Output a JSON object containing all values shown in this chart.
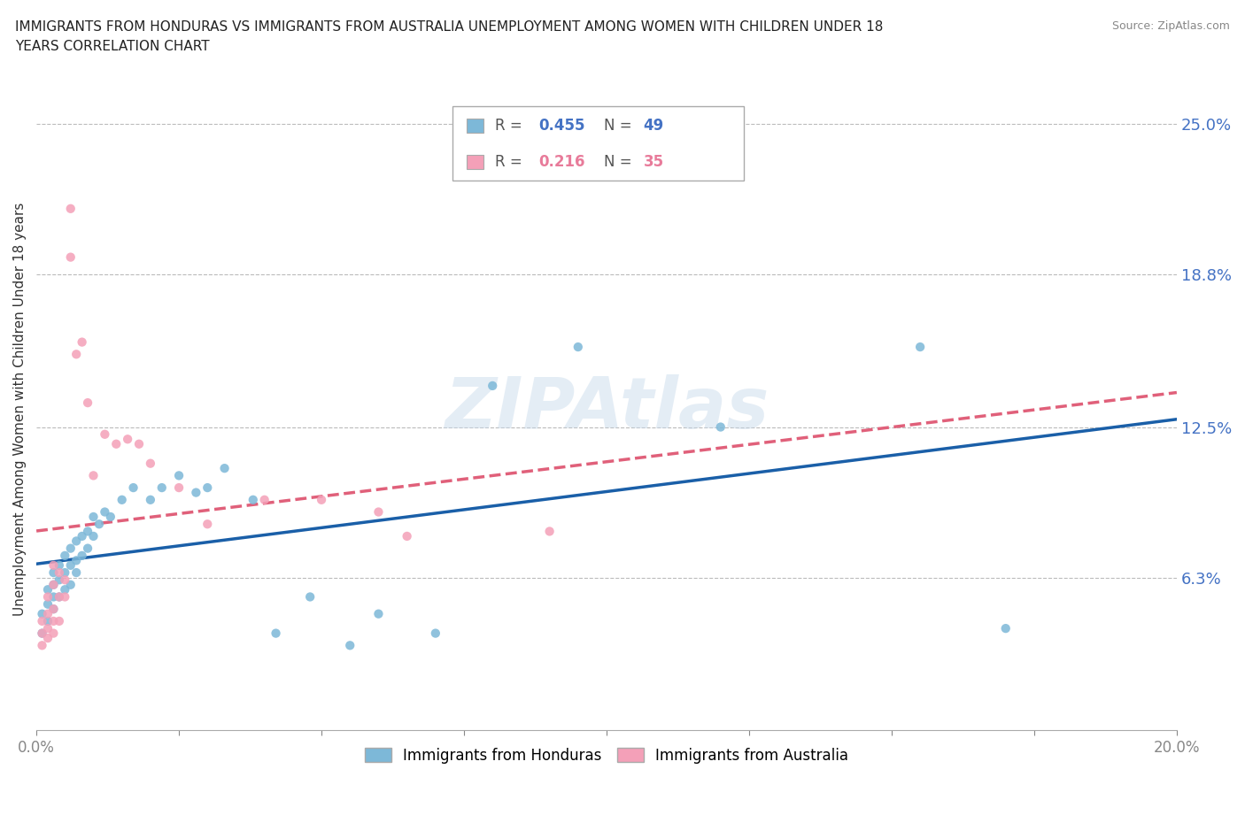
{
  "title": "IMMIGRANTS FROM HONDURAS VS IMMIGRANTS FROM AUSTRALIA UNEMPLOYMENT AMONG WOMEN WITH CHILDREN UNDER 18\nYEARS CORRELATION CHART",
  "source": "Source: ZipAtlas.com",
  "ylabel": "Unemployment Among Women with Children Under 18 years",
  "xlim": [
    0.0,
    0.2
  ],
  "ylim": [
    0.0,
    0.265
  ],
  "yticks": [
    0.063,
    0.125,
    0.188,
    0.25
  ],
  "ytick_labels": [
    "6.3%",
    "12.5%",
    "18.8%",
    "25.0%"
  ],
  "xticks": [
    0.0,
    0.025,
    0.05,
    0.075,
    0.1,
    0.125,
    0.15,
    0.175,
    0.2
  ],
  "xtick_labels": [
    "0.0%",
    "",
    "",
    "",
    "",
    "",
    "",
    "",
    "20.0%"
  ],
  "color_honduras": "#7db8d8",
  "color_australia": "#f4a0b8",
  "color_trend_honduras": "#1a5fa8",
  "color_trend_australia": "#e0607a",
  "watermark": "ZIPAtlas",
  "legend_label1": "Immigrants from Honduras",
  "legend_label2": "Immigrants from Australia",
  "honduras_x": [
    0.001,
    0.001,
    0.002,
    0.002,
    0.002,
    0.003,
    0.003,
    0.003,
    0.003,
    0.004,
    0.004,
    0.004,
    0.005,
    0.005,
    0.005,
    0.006,
    0.006,
    0.006,
    0.007,
    0.007,
    0.007,
    0.008,
    0.008,
    0.009,
    0.009,
    0.01,
    0.01,
    0.011,
    0.012,
    0.013,
    0.015,
    0.017,
    0.02,
    0.022,
    0.025,
    0.028,
    0.03,
    0.033,
    0.038,
    0.042,
    0.048,
    0.055,
    0.06,
    0.07,
    0.08,
    0.095,
    0.12,
    0.155,
    0.17
  ],
  "honduras_y": [
    0.04,
    0.048,
    0.045,
    0.052,
    0.058,
    0.05,
    0.055,
    0.06,
    0.065,
    0.055,
    0.062,
    0.068,
    0.058,
    0.065,
    0.072,
    0.06,
    0.068,
    0.075,
    0.065,
    0.07,
    0.078,
    0.072,
    0.08,
    0.075,
    0.082,
    0.08,
    0.088,
    0.085,
    0.09,
    0.088,
    0.095,
    0.1,
    0.095,
    0.1,
    0.105,
    0.098,
    0.1,
    0.108,
    0.095,
    0.04,
    0.055,
    0.035,
    0.048,
    0.04,
    0.142,
    0.158,
    0.125,
    0.158,
    0.042
  ],
  "australia_x": [
    0.001,
    0.001,
    0.001,
    0.002,
    0.002,
    0.002,
    0.002,
    0.003,
    0.003,
    0.003,
    0.003,
    0.003,
    0.004,
    0.004,
    0.004,
    0.005,
    0.005,
    0.006,
    0.006,
    0.007,
    0.008,
    0.009,
    0.01,
    0.012,
    0.014,
    0.016,
    0.018,
    0.02,
    0.025,
    0.03,
    0.04,
    0.05,
    0.06,
    0.065,
    0.09
  ],
  "australia_y": [
    0.035,
    0.04,
    0.045,
    0.038,
    0.042,
    0.048,
    0.055,
    0.04,
    0.045,
    0.05,
    0.06,
    0.068,
    0.045,
    0.055,
    0.065,
    0.055,
    0.062,
    0.215,
    0.195,
    0.155,
    0.16,
    0.135,
    0.105,
    0.122,
    0.118,
    0.12,
    0.118,
    0.11,
    0.1,
    0.085,
    0.095,
    0.095,
    0.09,
    0.08,
    0.082
  ]
}
